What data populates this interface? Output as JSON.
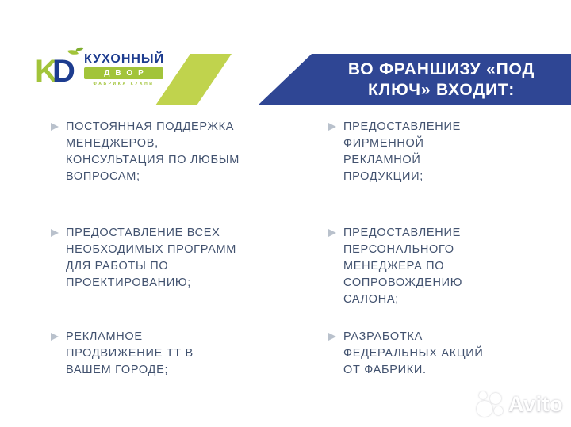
{
  "colors": {
    "banner-blue": "#2f4694",
    "accent-lime": "#c0d34d",
    "logo-lime": "#a2c43a",
    "logo-green": "#7fae2f",
    "logo-navy": "#1d3c8f",
    "text-navy": "#42526f",
    "chevron-gray": "#b9c1cc"
  },
  "logo": {
    "monogram_k": "K",
    "monogram_d": "D",
    "name": "КУХОННЫЙ",
    "name_bottom": "ДВОР",
    "tagline": "ФАБРИКА КУХНИ"
  },
  "banner": {
    "line1": "ВО ФРАНШИЗУ «ПОД",
    "line2": "КЛЮЧ» ВХОДИТ:"
  },
  "items_left": [
    {
      "text": "ПОСТОЯННАЯ ПОДДЕРЖКА\nМЕНЕДЖЕРОВ,\nКОНСУЛЬТАЦИЯ ПО ЛЮБЫМ\nВОПРОСАМ;"
    },
    {
      "text": "ПРЕДОСТАВЛЕНИЕ ВСЕХ\nНЕОБХОДИМЫХ ПРОГРАММ\nДЛЯ РАБОТЫ ПО\nПРОЕКТИРОВАНИЮ;"
    },
    {
      "text": "РЕКЛАМНОЕ\nПРОДВИЖЕНИЕ ТТ  В\nВАШЕМ ГОРОДЕ;"
    }
  ],
  "items_right": [
    {
      "text": "ПРЕДОСТАВЛЕНИЕ\nФИРМЕННОЙ\nРЕКЛАМНОЙ\nПРОДУКЦИИ;"
    },
    {
      "text": "ПРЕДОСТАВЛЕНИЕ\nПЕРСОНАЛЬНОГО\nМЕНЕДЖЕРА ПО\nСОПРОВОЖДЕНИЮ\nСАЛОНА;"
    },
    {
      "text": "РАЗРАБОТКА\nФЕДЕРАЛЬНЫХ АКЦИЙ\nОТ ФАБРИКИ."
    }
  ],
  "watermark": {
    "label": "Avito"
  }
}
